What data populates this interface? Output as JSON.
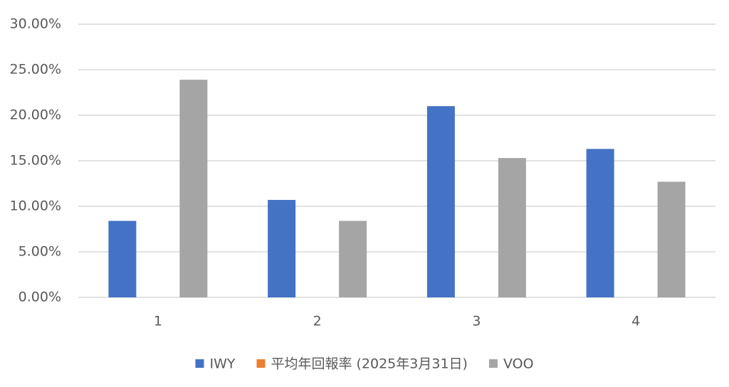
{
  "chart_data": {
    "type": "bar",
    "categories": [
      "1",
      "2",
      "3",
      "4"
    ],
    "series": [
      {
        "name": "IWY",
        "color": "#4472c4",
        "values": [
          8.4,
          10.7,
          21.0,
          16.3
        ]
      },
      {
        "name": "平均年回報率 (2025年3月31日)",
        "color": "#ed7d31",
        "values": [
          null,
          null,
          null,
          null
        ]
      },
      {
        "name": "VOO",
        "color": "#a5a5a5",
        "values": [
          23.9,
          8.4,
          15.3,
          12.7
        ]
      }
    ],
    "ylim": [
      0,
      30
    ],
    "yticks": [
      {
        "value": 0,
        "label": "0.00%"
      },
      {
        "value": 5,
        "label": "5.00%"
      },
      {
        "value": 10,
        "label": "10.00%"
      },
      {
        "value": 15,
        "label": "15.00%"
      },
      {
        "value": 20,
        "label": "20.00%"
      },
      {
        "value": 25,
        "label": "25.00%"
      },
      {
        "value": 30,
        "label": "30.00%"
      }
    ],
    "grid": true,
    "legend": "bottom"
  }
}
